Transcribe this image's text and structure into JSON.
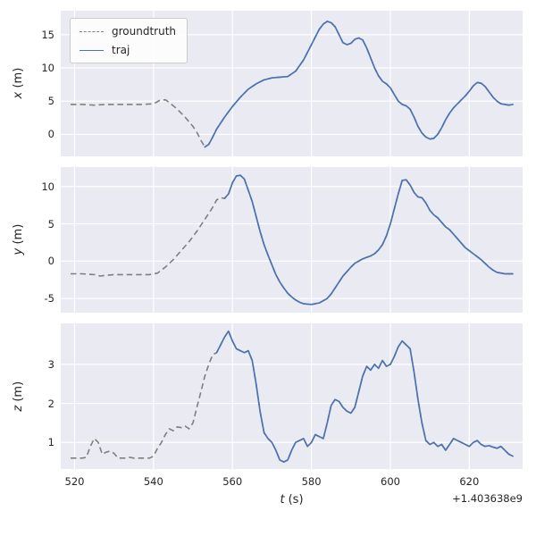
{
  "figure": {
    "background": "#ffffff",
    "panel_background": "#eaeaf2",
    "grid_color": "#ffffff",
    "text_color": "#262626",
    "xlabel_var": "t",
    "xlabel_unit": "(s)",
    "x_offset_text": "+1.403638e9",
    "xlim": [
      516.5,
      633.5
    ],
    "xticks": [
      520,
      540,
      560,
      580,
      600,
      620
    ],
    "legend": {
      "items": [
        {
          "label": "groundtruth",
          "color": "#7f7f7f",
          "style": "dashed"
        },
        {
          "label": "traj",
          "color": "#4c72b0",
          "style": "solid"
        }
      ]
    }
  },
  "chart_data": [
    {
      "type": "line",
      "ylabel_var": "x",
      "ylabel_unit": "(m)",
      "ylim": [
        -3.3,
        18.6
      ],
      "yticks": [
        0,
        5,
        10,
        15
      ],
      "traj_from": 553,
      "t": [
        519,
        522,
        525,
        528,
        531,
        534,
        537,
        540,
        541.5,
        543,
        544,
        546,
        548,
        550,
        551,
        552,
        553,
        554,
        555,
        556,
        558,
        560,
        562,
        564,
        566,
        568,
        570,
        572,
        574,
        576,
        578,
        580,
        582,
        583,
        584,
        585,
        586,
        587,
        588,
        589,
        590,
        591,
        592,
        593,
        594,
        595,
        596,
        597,
        598,
        599,
        600,
        601,
        602,
        603,
        604,
        605,
        606,
        607,
        608,
        609,
        610,
        611,
        612,
        613,
        614,
        615,
        616,
        617,
        618,
        619,
        620,
        621,
        622,
        623,
        624,
        625,
        626,
        627,
        628,
        629,
        630,
        631
      ],
      "v": [
        4.5,
        4.5,
        4.4,
        4.5,
        4.5,
        4.5,
        4.5,
        4.6,
        5.1,
        5.2,
        4.8,
        3.8,
        2.6,
        1.2,
        0.3,
        -0.9,
        -1.9,
        -1.5,
        -0.4,
        0.8,
        2.6,
        4.2,
        5.6,
        6.8,
        7.6,
        8.2,
        8.5,
        8.6,
        8.7,
        9.5,
        11.2,
        13.5,
        15.8,
        16.6,
        17.0,
        16.8,
        16.2,
        15.0,
        13.8,
        13.5,
        13.7,
        14.3,
        14.5,
        14.2,
        13.0,
        11.5,
        10.0,
        8.8,
        8.0,
        7.6,
        7.0,
        6.0,
        5.0,
        4.5,
        4.3,
        3.8,
        2.6,
        1.2,
        0.2,
        -0.4,
        -0.7,
        -0.6,
        0.0,
        1.0,
        2.2,
        3.2,
        4.0,
        4.6,
        5.2,
        5.8,
        6.5,
        7.3,
        7.8,
        7.7,
        7.2,
        6.4,
        5.6,
        5.0,
        4.6,
        4.5,
        4.4,
        4.5
      ]
    },
    {
      "type": "line",
      "ylabel_var": "y",
      "ylabel_unit": "(m)",
      "ylim": [
        -6.9,
        12.6
      ],
      "yticks": [
        -5,
        0,
        5,
        10
      ],
      "traj_from": 557.5,
      "t": [
        519,
        522,
        525,
        526.5,
        528,
        530,
        533,
        536,
        539,
        541,
        543,
        545,
        547,
        549,
        551,
        553,
        555,
        556,
        557,
        558,
        559,
        560,
        561,
        562,
        563,
        564,
        565,
        566,
        567,
        568,
        569,
        570,
        571,
        572,
        573,
        574,
        575,
        576,
        577,
        578,
        580,
        582,
        584,
        585,
        586,
        587,
        588,
        589,
        590,
        591,
        592,
        593,
        594,
        595,
        596,
        597,
        598,
        599,
        600,
        601,
        602,
        603,
        604,
        605,
        606,
        607,
        608,
        609,
        610,
        611,
        612,
        613,
        614,
        615,
        616,
        617,
        618,
        619,
        620,
        621,
        622,
        623,
        624,
        625,
        626,
        627,
        628,
        629,
        630,
        631
      ],
      "v": [
        -1.7,
        -1.7,
        -1.8,
        -2.0,
        -1.9,
        -1.8,
        -1.8,
        -1.8,
        -1.8,
        -1.6,
        -0.8,
        0.2,
        1.4,
        2.6,
        4.0,
        5.6,
        7.2,
        8.2,
        8.5,
        8.4,
        9.0,
        10.5,
        11.4,
        11.5,
        11.0,
        9.5,
        8.0,
        6.0,
        4.0,
        2.2,
        0.8,
        -0.5,
        -1.8,
        -2.8,
        -3.6,
        -4.3,
        -4.8,
        -5.2,
        -5.5,
        -5.7,
        -5.8,
        -5.6,
        -5.0,
        -4.4,
        -3.6,
        -2.8,
        -2.0,
        -1.4,
        -0.8,
        -0.3,
        0.0,
        0.3,
        0.5,
        0.7,
        1.0,
        1.5,
        2.2,
        3.4,
        5.0,
        7.0,
        9.0,
        10.8,
        10.9,
        10.2,
        9.2,
        8.6,
        8.5,
        7.8,
        6.8,
        6.2,
        5.8,
        5.2,
        4.6,
        4.2,
        3.6,
        3.0,
        2.4,
        1.8,
        1.4,
        1.0,
        0.6,
        0.2,
        -0.3,
        -0.8,
        -1.2,
        -1.5,
        -1.6,
        -1.7,
        -1.7,
        -1.7
      ]
    },
    {
      "type": "line",
      "ylabel_var": "z",
      "ylabel_unit": "(m)",
      "ylim": [
        0.32,
        4.05
      ],
      "yticks": [
        1,
        2,
        3
      ],
      "traj_from": 555.5,
      "t0": 519,
      "dt": 1,
      "v": [
        0.6,
        0.6,
        0.6,
        0.6,
        0.62,
        0.9,
        1.1,
        1.0,
        0.7,
        0.75,
        0.78,
        0.72,
        0.6,
        0.6,
        0.6,
        0.62,
        0.6,
        0.6,
        0.6,
        0.6,
        0.6,
        0.65,
        0.85,
        1.0,
        1.2,
        1.35,
        1.3,
        1.4,
        1.38,
        1.42,
        1.35,
        1.5,
        1.9,
        2.3,
        2.7,
        3.0,
        3.25,
        3.3,
        3.5,
        3.7,
        3.85,
        3.6,
        3.4,
        3.35,
        3.3,
        3.35,
        3.1,
        2.5,
        1.8,
        1.25,
        1.1,
        1.0,
        0.8,
        0.55,
        0.5,
        0.55,
        0.8,
        1.0,
        1.05,
        1.1,
        0.9,
        1.0,
        1.2,
        1.15,
        1.1,
        1.5,
        1.95,
        2.1,
        2.05,
        1.9,
        1.8,
        1.75,
        1.9,
        2.3,
        2.7,
        2.95,
        2.85,
        3.0,
        2.9,
        3.1,
        2.95,
        3.0,
        3.2,
        3.45,
        3.6,
        3.5,
        3.4,
        2.8,
        2.1,
        1.5,
        1.05,
        0.95,
        1.0,
        0.9,
        0.95,
        0.8,
        0.95,
        1.1,
        1.05,
        1.0,
        0.95,
        0.9,
        1.0,
        1.05,
        0.95,
        0.9,
        0.92,
        0.88,
        0.85,
        0.9,
        0.8,
        0.7,
        0.65
      ]
    }
  ]
}
